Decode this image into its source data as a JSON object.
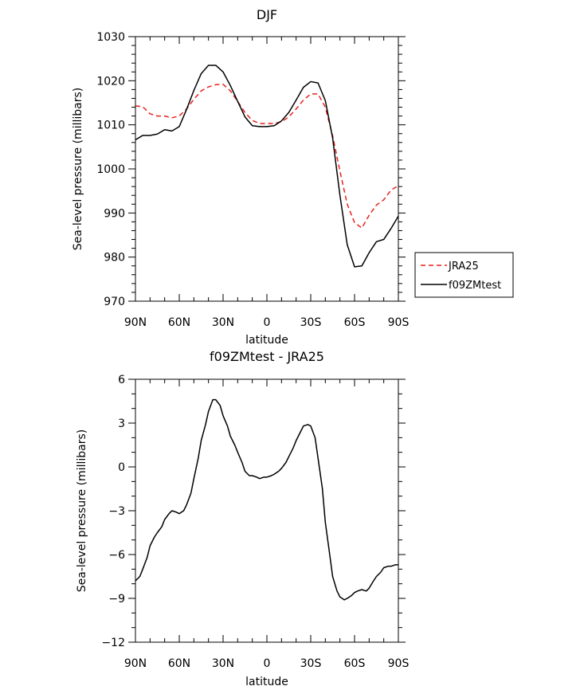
{
  "chart_data": [
    {
      "type": "line",
      "title": "DJF",
      "xlabel": "latitude",
      "ylabel": "Sea-level pressure (millibars)",
      "xlim": [
        90,
        -90
      ],
      "ylim": [
        970,
        1030
      ],
      "x_ticks": [
        {
          "value": 90,
          "label": "90N"
        },
        {
          "value": 60,
          "label": "60N"
        },
        {
          "value": 30,
          "label": "30N"
        },
        {
          "value": 0,
          "label": "0"
        },
        {
          "value": -30,
          "label": "30S"
        },
        {
          "value": -60,
          "label": "60S"
        },
        {
          "value": -90,
          "label": "90S"
        }
      ],
      "y_ticks": [
        {
          "value": 1030,
          "label": "1030"
        },
        {
          "value": 1020,
          "label": "1020"
        },
        {
          "value": 1010,
          "label": "1010"
        },
        {
          "value": 1000,
          "label": "1000"
        },
        {
          "value": 990,
          "label": "990"
        },
        {
          "value": 980,
          "label": "980"
        },
        {
          "value": 970,
          "label": "970"
        }
      ],
      "legend_position": "right",
      "series": [
        {
          "name": "JRA25",
          "color": "#e8201c",
          "dash": "dashed",
          "x": [
            90,
            85,
            80,
            75,
            70,
            65,
            60,
            55,
            50,
            45,
            40,
            35,
            30,
            25,
            20,
            15,
            10,
            5,
            0,
            -5,
            -10,
            -15,
            -20,
            -25,
            -30,
            -35,
            -40,
            -45,
            -50,
            -55,
            -60,
            -65,
            -70,
            -75,
            -80,
            -85,
            -90
          ],
          "values": [
            1014.3,
            1014.1,
            1012.5,
            1012.0,
            1012.0,
            1011.6,
            1012.0,
            1013.6,
            1015.8,
            1017.7,
            1018.6,
            1019.1,
            1019.2,
            1017.7,
            1015.3,
            1012.8,
            1011.0,
            1010.3,
            1010.3,
            1010.3,
            1010.7,
            1011.8,
            1013.6,
            1015.6,
            1017.0,
            1017.0,
            1014.0,
            1007.5,
            999.5,
            992.0,
            987.8,
            986.6,
            989.5,
            991.8,
            993.0,
            995.2,
            996.2
          ]
        },
        {
          "name": "f09ZMtest",
          "color": "#000000",
          "dash": "solid",
          "x": [
            90,
            85,
            80,
            75,
            70,
            65,
            60,
            55,
            50,
            45,
            40,
            35,
            30,
            25,
            20,
            15,
            10,
            5,
            0,
            -5,
            -10,
            -15,
            -20,
            -25,
            -30,
            -35,
            -40,
            -45,
            -50,
            -55,
            -60,
            -65,
            -70,
            -75,
            -80,
            -85,
            -90
          ],
          "values": [
            1006.6,
            1007.6,
            1007.6,
            1007.9,
            1008.9,
            1008.6,
            1009.6,
            1013.5,
            1017.8,
            1021.6,
            1023.5,
            1023.5,
            1022.0,
            1018.9,
            1015.3,
            1011.8,
            1009.8,
            1009.6,
            1009.6,
            1009.8,
            1010.9,
            1012.8,
            1015.6,
            1018.5,
            1019.8,
            1019.5,
            1015.5,
            1007.0,
            994.0,
            982.8,
            977.8,
            978.0,
            981.0,
            983.5,
            984.0,
            986.5,
            989.3
          ]
        }
      ]
    },
    {
      "type": "line",
      "title": "f09ZMtest - JRA25",
      "xlabel": "latitude",
      "ylabel": "Sea-level pressure (millibars)",
      "xlim": [
        90,
        -90
      ],
      "ylim": [
        -12,
        6
      ],
      "x_ticks": [
        {
          "value": 90,
          "label": "90N"
        },
        {
          "value": 60,
          "label": "60N"
        },
        {
          "value": 30,
          "label": "30N"
        },
        {
          "value": 0,
          "label": "0"
        },
        {
          "value": -30,
          "label": "30S"
        },
        {
          "value": -60,
          "label": "60S"
        },
        {
          "value": -90,
          "label": "90S"
        }
      ],
      "y_ticks": [
        {
          "value": 6,
          "label": "6"
        },
        {
          "value": 3,
          "label": "3"
        },
        {
          "value": 0,
          "label": "0"
        },
        {
          "value": -3,
          "label": "−3"
        },
        {
          "value": -6,
          "label": "−6"
        },
        {
          "value": -9,
          "label": "−9"
        },
        {
          "value": -12,
          "label": "−12"
        }
      ],
      "series": [
        {
          "color": "#000000",
          "dash": "solid",
          "x": [
            90,
            87,
            85,
            82,
            80,
            77,
            75,
            72,
            70,
            67,
            65,
            62,
            60,
            57,
            55,
            52,
            50,
            47,
            45,
            42,
            40,
            37,
            35,
            32,
            30,
            27,
            25,
            22,
            20,
            17,
            15,
            12,
            10,
            7,
            5,
            2,
            0,
            -3,
            -5,
            -8,
            -10,
            -13,
            -15,
            -18,
            -20,
            -23,
            -25,
            -28,
            -30,
            -33,
            -35,
            -38,
            -40,
            -43,
            -45,
            -48,
            -50,
            -53,
            -55,
            -58,
            -60,
            -62,
            -65,
            -68,
            -70,
            -73,
            -75,
            -78,
            -80,
            -83,
            -85,
            -88,
            -90
          ],
          "values": [
            -7.8,
            -7.5,
            -7.0,
            -6.2,
            -5.4,
            -4.8,
            -4.5,
            -4.1,
            -3.6,
            -3.2,
            -3.0,
            -3.1,
            -3.2,
            -3.0,
            -2.6,
            -1.8,
            -0.8,
            0.6,
            1.8,
            2.9,
            3.8,
            4.6,
            4.6,
            4.2,
            3.5,
            2.8,
            2.1,
            1.5,
            1.0,
            0.3,
            -0.3,
            -0.6,
            -0.6,
            -0.7,
            -0.8,
            -0.7,
            -0.7,
            -0.6,
            -0.5,
            -0.3,
            -0.1,
            0.3,
            0.7,
            1.3,
            1.8,
            2.4,
            2.8,
            2.9,
            2.8,
            2.0,
            0.6,
            -1.5,
            -3.8,
            -6.0,
            -7.5,
            -8.5,
            -8.9,
            -9.1,
            -9.0,
            -8.8,
            -8.6,
            -8.5,
            -8.4,
            -8.5,
            -8.3,
            -7.8,
            -7.5,
            -7.2,
            -6.9,
            -6.8,
            -6.8,
            -6.7,
            -6.7
          ]
        }
      ]
    }
  ]
}
